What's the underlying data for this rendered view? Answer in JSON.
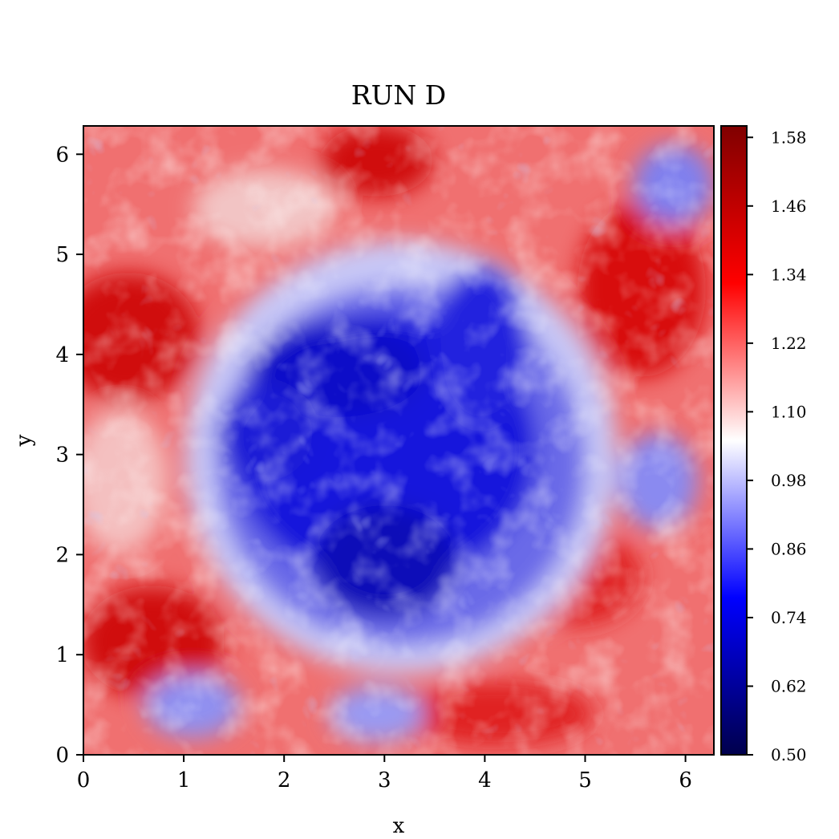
{
  "chart_data": {
    "type": "heatmap",
    "title": "RUN D",
    "xlabel": "x",
    "ylabel": "y",
    "xlim": [
      0,
      6.283
    ],
    "ylim": [
      0,
      6.283
    ],
    "x_ticks": [
      "0",
      "1",
      "2",
      "3",
      "4",
      "5",
      "6"
    ],
    "y_ticks": [
      "0",
      "1",
      "2",
      "3",
      "4",
      "5",
      "6"
    ],
    "colorbar": {
      "range": [
        0.5,
        1.6
      ],
      "ticks": [
        "0.50",
        "0.62",
        "0.74",
        "0.86",
        "0.98",
        "1.10",
        "1.22",
        "1.34",
        "1.46",
        "1.58"
      ],
      "colormap": "seismic",
      "colors": [
        "#00004c",
        "#0000ff",
        "#ffffff",
        "#ff0000",
        "#800000"
      ]
    },
    "field_description": "turbulent 2D field; low values (blue) form a large central region around (3, 3); high values (red) fill the outer region"
  }
}
